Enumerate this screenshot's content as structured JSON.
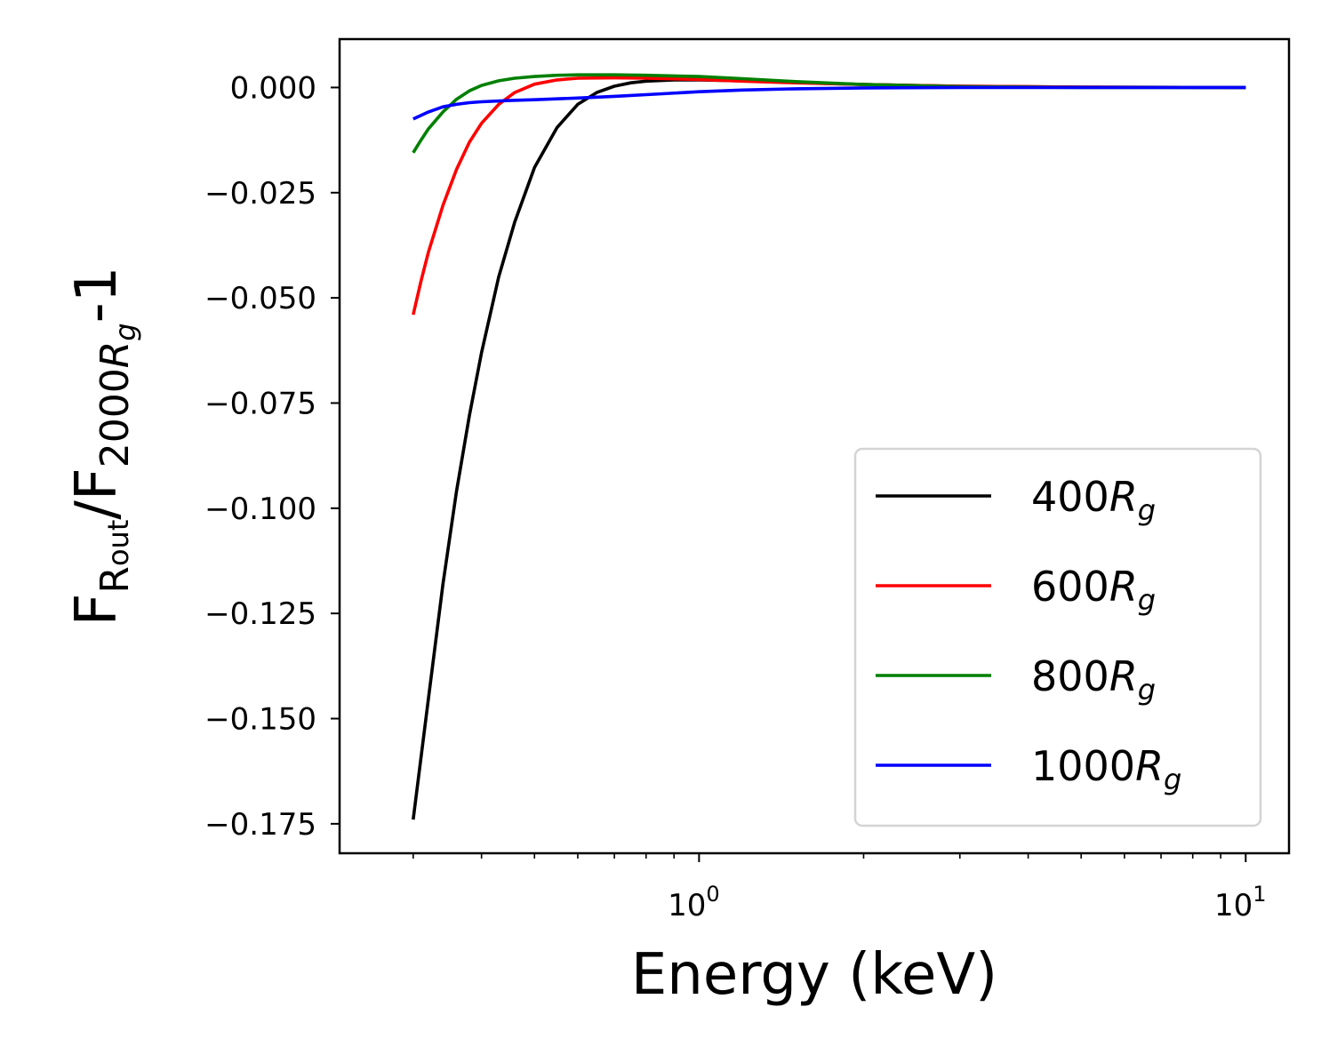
{
  "chart_data": {
    "type": "line",
    "title": "",
    "xlabel": "Energy (keV)",
    "ylabel": {
      "main": "F",
      "num_sub": "R",
      "num_subsub": "out",
      "slash": "/F",
      "den_sub": "2000",
      "den_R": "R",
      "den_g": "g",
      "suffix": "-1"
    },
    "xscale": "log",
    "xlim": [
      0.22,
      12.0
    ],
    "ylim": [
      -0.182,
      0.0115
    ],
    "x_ticks": [
      {
        "value": 1,
        "base": "10",
        "exp": "0"
      },
      {
        "value": 10,
        "base": "10",
        "exp": "1"
      }
    ],
    "x_minor_ticks": [
      0.3,
      0.4,
      0.5,
      0.6,
      0.7,
      0.8,
      0.9,
      2,
      3,
      4,
      5,
      6,
      7,
      8,
      9
    ],
    "y_ticks": [
      {
        "value": 0.0,
        "label": "0.000"
      },
      {
        "value": -0.025,
        "label": "−0.025"
      },
      {
        "value": -0.05,
        "label": "−0.050"
      },
      {
        "value": -0.075,
        "label": "−0.075"
      },
      {
        "value": -0.1,
        "label": "−0.100"
      },
      {
        "value": -0.125,
        "label": "−0.125"
      },
      {
        "value": -0.15,
        "label": "−0.150"
      },
      {
        "value": -0.175,
        "label": "−0.175"
      }
    ],
    "legend_position": "lower-right",
    "series": [
      {
        "name": "400",
        "sub": "R",
        "subsub": "g",
        "color": "#000000",
        "x": [
          0.3,
          0.32,
          0.34,
          0.36,
          0.38,
          0.4,
          0.43,
          0.46,
          0.5,
          0.55,
          0.6,
          0.65,
          0.7,
          0.75,
          0.8,
          0.9,
          1.0,
          1.2,
          1.5,
          2.0,
          3.0,
          5.0,
          10.0
        ],
        "values": [
          -0.174,
          -0.145,
          -0.118,
          -0.096,
          -0.078,
          -0.063,
          -0.045,
          -0.032,
          -0.019,
          -0.0095,
          -0.004,
          -0.0012,
          0.0003,
          0.0011,
          0.0015,
          0.0018,
          0.0018,
          0.0016,
          0.0012,
          0.0007,
          0.0003,
          0.0001,
          0.0
        ]
      },
      {
        "name": "600",
        "sub": "R",
        "subsub": "g",
        "color": "#ff0000",
        "x": [
          0.3,
          0.31,
          0.32,
          0.34,
          0.36,
          0.38,
          0.4,
          0.43,
          0.46,
          0.5,
          0.55,
          0.6,
          0.7,
          0.8,
          1.0,
          1.2,
          1.5,
          2.0,
          3.0,
          5.0,
          10.0
        ],
        "values": [
          -0.054,
          -0.046,
          -0.039,
          -0.028,
          -0.0195,
          -0.013,
          -0.0085,
          -0.004,
          -0.0012,
          0.0008,
          0.0018,
          0.0022,
          0.0023,
          0.0022,
          0.0019,
          0.0015,
          0.0011,
          0.0007,
          0.0003,
          0.0001,
          0.0
        ]
      },
      {
        "name": "800",
        "sub": "R",
        "subsub": "g",
        "color": "#008000",
        "x": [
          0.3,
          0.31,
          0.32,
          0.34,
          0.36,
          0.38,
          0.4,
          0.43,
          0.46,
          0.5,
          0.55,
          0.6,
          0.7,
          0.8,
          1.0,
          1.2,
          1.5,
          2.0,
          3.0,
          5.0,
          10.0
        ],
        "values": [
          -0.0155,
          -0.0125,
          -0.0098,
          -0.0058,
          -0.0028,
          -0.0008,
          0.0005,
          0.0016,
          0.0022,
          0.0026,
          0.0029,
          0.003,
          0.003,
          0.0029,
          0.0026,
          0.0021,
          0.0014,
          0.0007,
          0.0002,
          0.0,
          0.0
        ]
      },
      {
        "name": "1000",
        "sub": "R",
        "subsub": "g",
        "color": "#0000ff",
        "x": [
          0.3,
          0.32,
          0.34,
          0.36,
          0.38,
          0.4,
          0.45,
          0.5,
          0.6,
          0.7,
          0.8,
          1.0,
          1.2,
          1.5,
          2.0,
          3.0,
          5.0,
          10.0
        ],
        "values": [
          -0.0075,
          -0.0058,
          -0.0046,
          -0.004,
          -0.0036,
          -0.0034,
          -0.0031,
          -0.0029,
          -0.0025,
          -0.0021,
          -0.0017,
          -0.001,
          -0.0006,
          -0.0003,
          -0.0001,
          0.0,
          0.0,
          0.0
        ]
      }
    ]
  }
}
